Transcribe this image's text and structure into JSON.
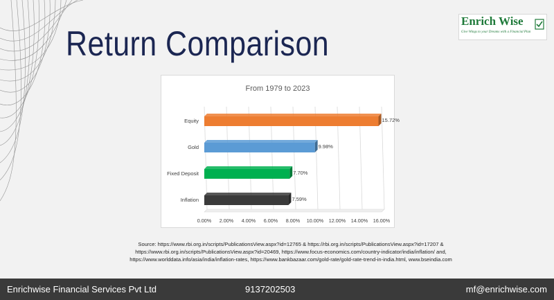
{
  "slide": {
    "title": "Return Comparison"
  },
  "logo": {
    "name": "Enrich Wise",
    "tagline": "Give Wings to your Dreams with a Financial Plan"
  },
  "colors": {
    "title": "#1b2652",
    "footer_bg": "#3a3a3a",
    "logo_green": "#1f7a3a"
  },
  "chart_data": {
    "type": "bar",
    "orientation": "horizontal",
    "title": "From 1979 to 2023",
    "xlabel": "",
    "ylabel": "",
    "categories": [
      "Equity",
      "Gold",
      "Fixed Deposit",
      "Inflation"
    ],
    "values": [
      15.72,
      9.98,
      7.7,
      7.59
    ],
    "value_labels": [
      "15.72%",
      "9.98%",
      "7.70%",
      "7.59%"
    ],
    "colors": [
      "#ed7d31",
      "#5b9bd5",
      "#00b050",
      "#3a3a3a"
    ],
    "xlim": [
      0,
      16
    ],
    "x_ticks": [
      "0.00%",
      "2.00%",
      "4.00%",
      "6.00%",
      "8.00%",
      "10.00%",
      "12.00%",
      "14.00%",
      "16.00%"
    ],
    "grid": true,
    "legend": "none"
  },
  "source": {
    "lines": [
      "Source:  https://www.rbi.org.in/scripts/PublicationsView.aspx?id=12765 & https://rbi.org.in/scripts/PublicationsView.aspx?id=17207 &",
      "https://www.rbi.org.in/scripts/PublicationsView.aspx?id=20469, https://www.focus-economics.com/country-indicator/india/inflation/ and,",
      "https://www.worlddata.info/asia/india/inflation-rates, https://www.bankbazaar.com/gold-rate/gold-rate-trend-in-india.html, www.bseindia.com"
    ]
  },
  "footer": {
    "company": "Enrichwise Financial Services Pvt Ltd",
    "phone": "9137202503",
    "email": "mf@enrichwise.com"
  }
}
